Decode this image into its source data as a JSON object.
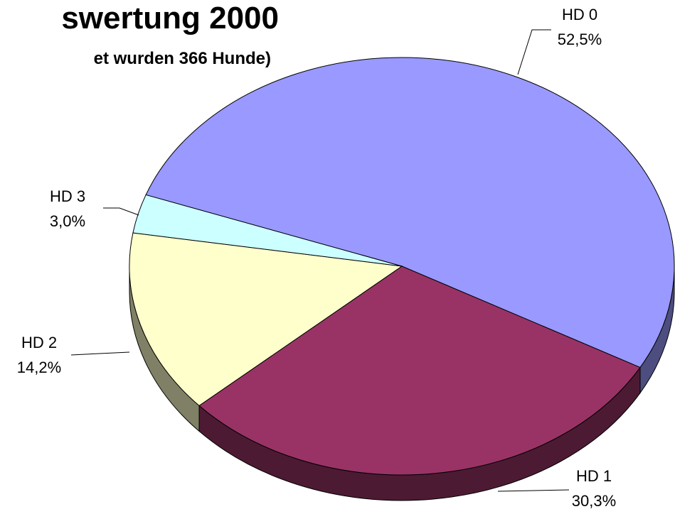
{
  "chart_data": {
    "type": "pie3d",
    "title": "swertung 2000",
    "subtitle": "et wurden 366 Hunde)",
    "categories": [
      "HD 0",
      "HD 1",
      "HD 2",
      "HD 3"
    ],
    "values": [
      52.5,
      30.3,
      14.2,
      3.0
    ],
    "value_labels": [
      "52,5%",
      "30,3%",
      "14,2%",
      "3,0%"
    ],
    "colors": [
      "#9999ff",
      "#993366",
      "#ffffcc",
      "#ccffff"
    ]
  }
}
